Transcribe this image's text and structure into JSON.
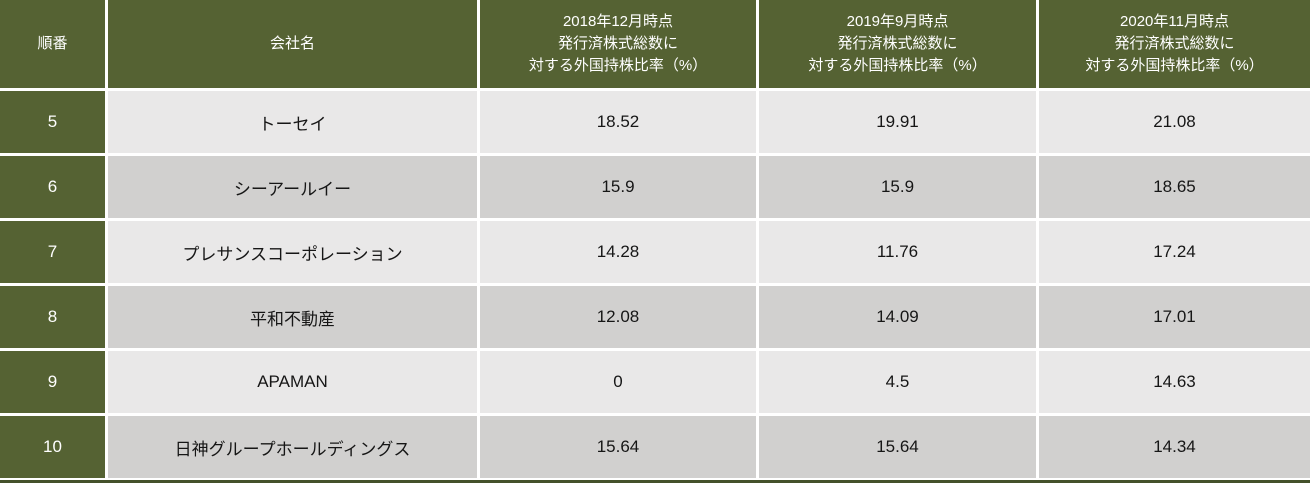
{
  "chart_data": {
    "type": "table",
    "header": {
      "rank": "順番",
      "company": "会社名",
      "periods": [
        {
          "line1": "2018年12月時点",
          "line2": "発行済株式総数に",
          "line3": "対する外国持株比率（%）"
        },
        {
          "line1": "2019年9月時点",
          "line2": "発行済株式総数に",
          "line3": "対する外国持株比率（%）"
        },
        {
          "line1": "2020年11月時点",
          "line2": "発行済株式総数に",
          "line3": "対する外国持株比率（%）"
        }
      ]
    },
    "rows": [
      {
        "rank": "5",
        "company": "トーセイ",
        "values": [
          "18.52",
          "19.91",
          "21.08"
        ]
      },
      {
        "rank": "6",
        "company": "シーアールイー",
        "values": [
          "15.9",
          "15.9",
          "18.65"
        ]
      },
      {
        "rank": "7",
        "company": "プレサンスコーポレーション",
        "values": [
          "14.28",
          "11.76",
          "17.24"
        ]
      },
      {
        "rank": "8",
        "company": "平和不動産",
        "values": [
          "12.08",
          "14.09",
          "17.01"
        ]
      },
      {
        "rank": "9",
        "company": "APAMAN",
        "values": [
          "0",
          "4.5",
          "14.63"
        ]
      },
      {
        "rank": "10",
        "company": "日神グループホールディングス",
        "values": [
          "15.64",
          "15.64",
          "14.34"
        ]
      }
    ]
  },
  "colors": {
    "header_green": "#556233",
    "row_light_gray": "#e9e8e8",
    "row_dark_gray": "#d1d0cf",
    "separator_white": "#ffffff",
    "bottom_border_dark_olive": "#44512a",
    "header_text": "#ffffff",
    "cell_text": "#161616"
  }
}
